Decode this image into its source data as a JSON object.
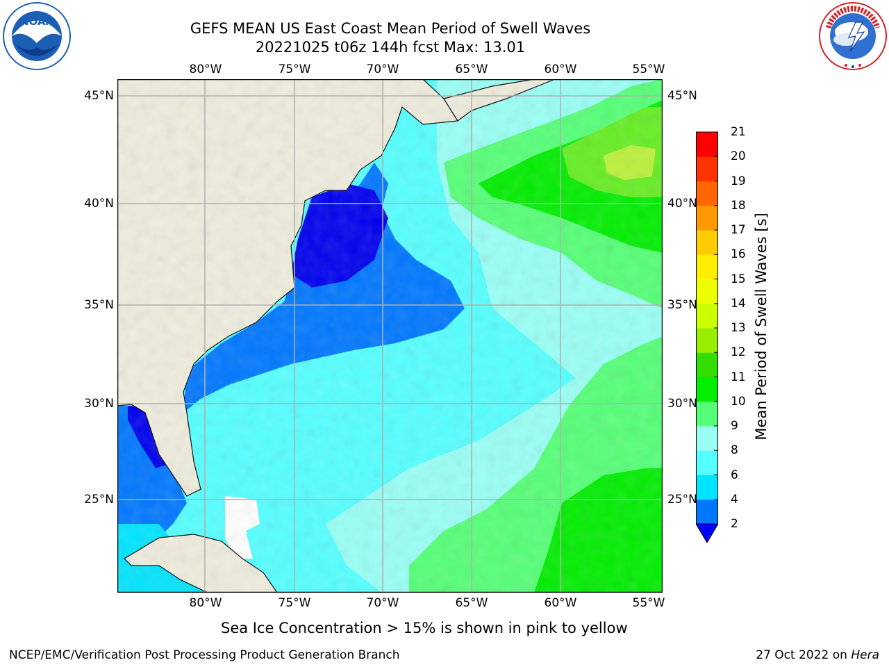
{
  "title": {
    "line1": "GEFS MEAN US East Coast Mean Period of Swell Waves",
    "line2": "20221025 t06z 144h fcst   Max: 13.01"
  },
  "logos": {
    "left": {
      "name": "noaa-logo",
      "text": "NOAA",
      "ring_text": "NATIONAL OCEANIC AND ATMOSPHERIC ADMINISTRATION · U.S. DEPARTMENT OF COMMERCE",
      "color": "#1a5fb4"
    },
    "right": {
      "name": "nws-logo",
      "ring_text": "NATIONAL WEATHER SERVICE",
      "color": "#d41f26"
    }
  },
  "map": {
    "land_color": "#eeecdc",
    "grid_color": "#b0b0b0",
    "lon_labels": [
      "80°W",
      "75°W",
      "70°W",
      "65°W",
      "60°W",
      "55°W"
    ],
    "lat_labels": [
      "45°N",
      "40°N",
      "35°N",
      "30°N",
      "25°N"
    ]
  },
  "colorbar": {
    "label": "Mean Period of Swell Waves [s]",
    "ticks": [
      "2",
      "4",
      "6",
      "8",
      "9",
      "10",
      "11",
      "12",
      "13",
      "14",
      "15",
      "16",
      "17",
      "18",
      "19",
      "20",
      "21"
    ],
    "colors": [
      "#0000ff",
      "#0077ff",
      "#00e5ff",
      "#55ffff",
      "#99fff5",
      "#55ff77",
      "#00ee00",
      "#33dd00",
      "#99ee00",
      "#ccff00",
      "#eeff00",
      "#ffee00",
      "#ffcc00",
      "#ff9900",
      "#ff6600",
      "#ff3300",
      "#ff0000"
    ]
  },
  "note": "Sea Ice Concentration > 15% is shown in pink to yellow",
  "footer": {
    "left": "NCEP/EMC/Verification Post Processing Product Generation Branch",
    "right_date": "27 Oct 2022 on",
    "right_host": "Hera"
  }
}
